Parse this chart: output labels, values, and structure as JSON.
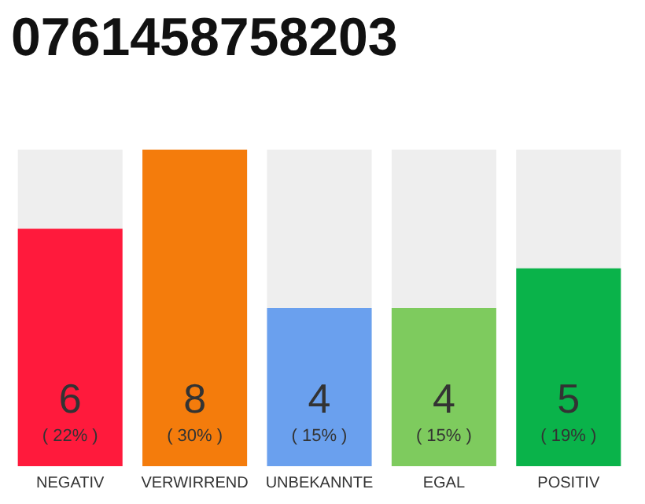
{
  "chart_data": {
    "type": "bar",
    "title": "0761458758203",
    "categories": [
      "NEGATIV",
      "VERWIRREND",
      "UNBEKANNTE",
      "EGAL",
      "POSITIV"
    ],
    "values": [
      6,
      8,
      4,
      4,
      5
    ],
    "colors": [
      "#ff1a3c",
      "#f47c0c",
      "#6aa0ee",
      "#7ecb5e",
      "#0ab34a"
    ],
    "value_labels": [
      "6\n( 22% )",
      "8\n( 30% )",
      "4\n( 15% )",
      "4\n( 15% )",
      "5\n( 19% )"
    ]
  }
}
